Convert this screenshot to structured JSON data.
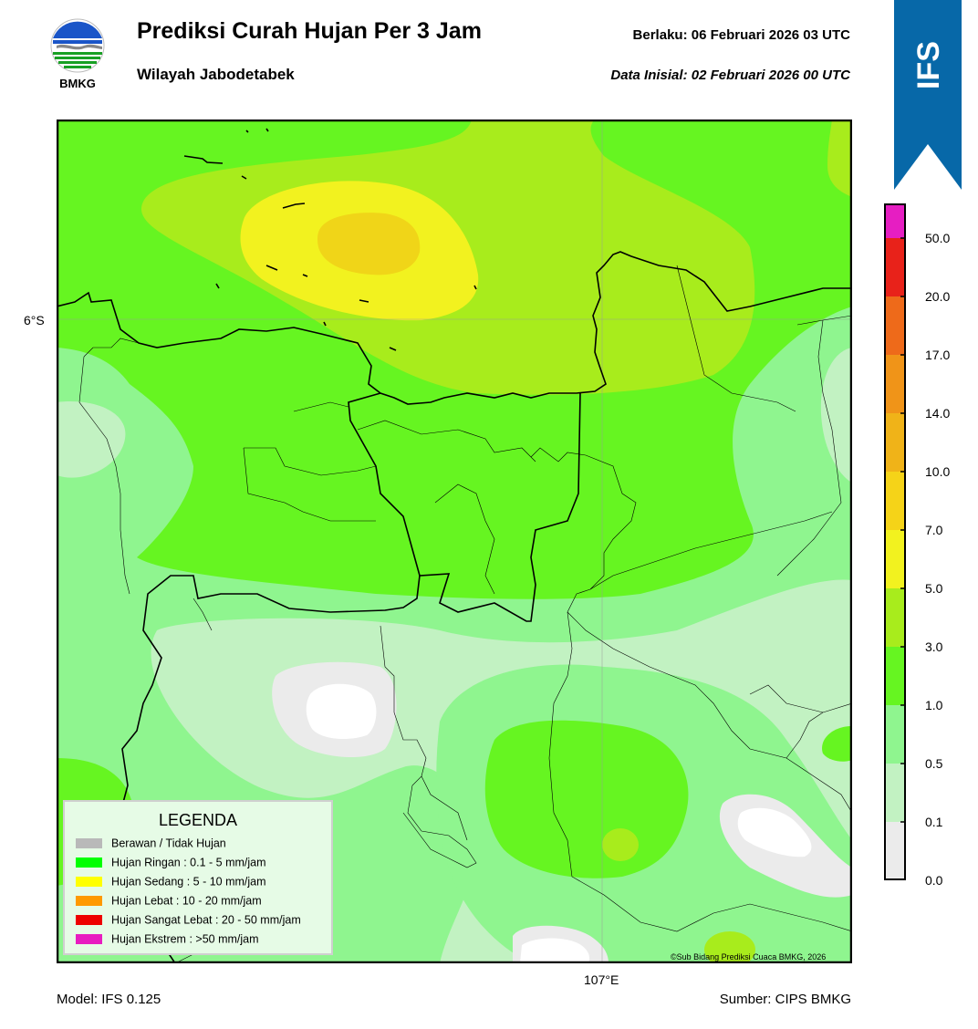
{
  "header": {
    "title": "Prediksi Curah Hujan Per 3 Jam",
    "subtitle": "Wilayah Jabodetabek",
    "valid_time": "Berlaku:  06 Februari 2026 03 UTC",
    "init_time": "Data Inisial:  02 Februari 2026 00 UTC",
    "logo_text": "BMKG",
    "ribbon_text": "IFS"
  },
  "map": {
    "lat_label": "6°S",
    "lon_label": "107°E",
    "copyright": "©Sub Bidang Prediksi Cuaca BMKG, 2026"
  },
  "legend": {
    "title": "LEGENDA",
    "items": [
      {
        "label": "Berawan / Tidak Hujan",
        "color": "#b9b9b9"
      },
      {
        "label": "Hujan Ringan : 0.1 - 5 mm/jam",
        "color": "#00ff00"
      },
      {
        "label": "Hujan Sedang : 5 - 10 mm/jam",
        "color": "#ffff00"
      },
      {
        "label": "Hujan Lebat : 10 - 20 mm/jam",
        "color": "#ff9900"
      },
      {
        "label": "Hujan Sangat Lebat : 20 - 50 mm/jam",
        "color": "#ee0000"
      },
      {
        "label": "Hujan Ekstrem : >50 mm/jam",
        "color": "#e81cc0"
      }
    ]
  },
  "colorbar": {
    "labels": [
      "0.0",
      "0.1",
      "0.5",
      "1.0",
      "3.0",
      "5.0",
      "7.0",
      "10.0",
      "14.0",
      "17.0",
      "20.0",
      "50.0"
    ],
    "colors": [
      "#ebebeb",
      "#c2f2c2",
      "#8ff58f",
      "#66f521",
      "#a8ec1c",
      "#f2f21f",
      "#f5d318",
      "#f0b318",
      "#f09418",
      "#ee6a1a",
      "#e8221a",
      "#e61ec2"
    ]
  },
  "footer": {
    "model": "Model: IFS 0.125",
    "source": "Sumber: CIPS BMKG"
  }
}
